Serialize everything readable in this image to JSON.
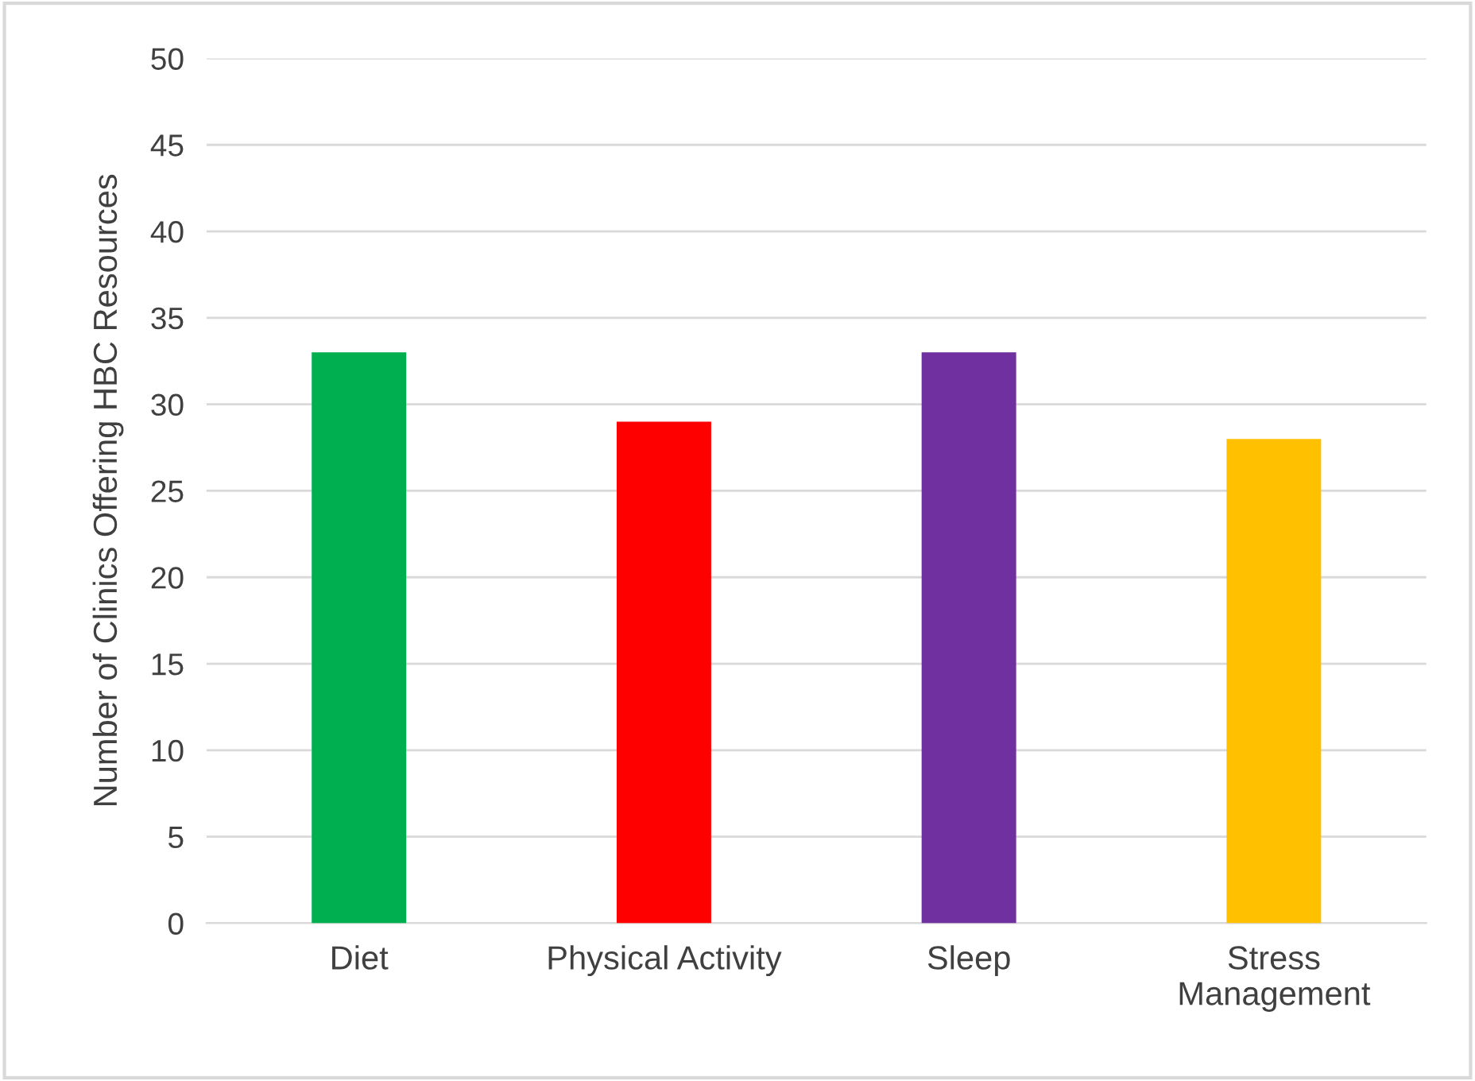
{
  "chart_data": {
    "type": "bar",
    "ylabel": "Number of Clinics Offering HBC Resources",
    "categories": [
      "Diet",
      "Physical Activity",
      "Sleep",
      "Stress\nManagement"
    ],
    "values": [
      33,
      29,
      33,
      28
    ],
    "colors": [
      "#00b050",
      "#ff0000",
      "#7030a0",
      "#ffc000"
    ],
    "ylim": [
      0,
      50
    ],
    "yticks": [
      0,
      5,
      10,
      15,
      20,
      25,
      30,
      35,
      40,
      45,
      50
    ],
    "grid": "y"
  }
}
